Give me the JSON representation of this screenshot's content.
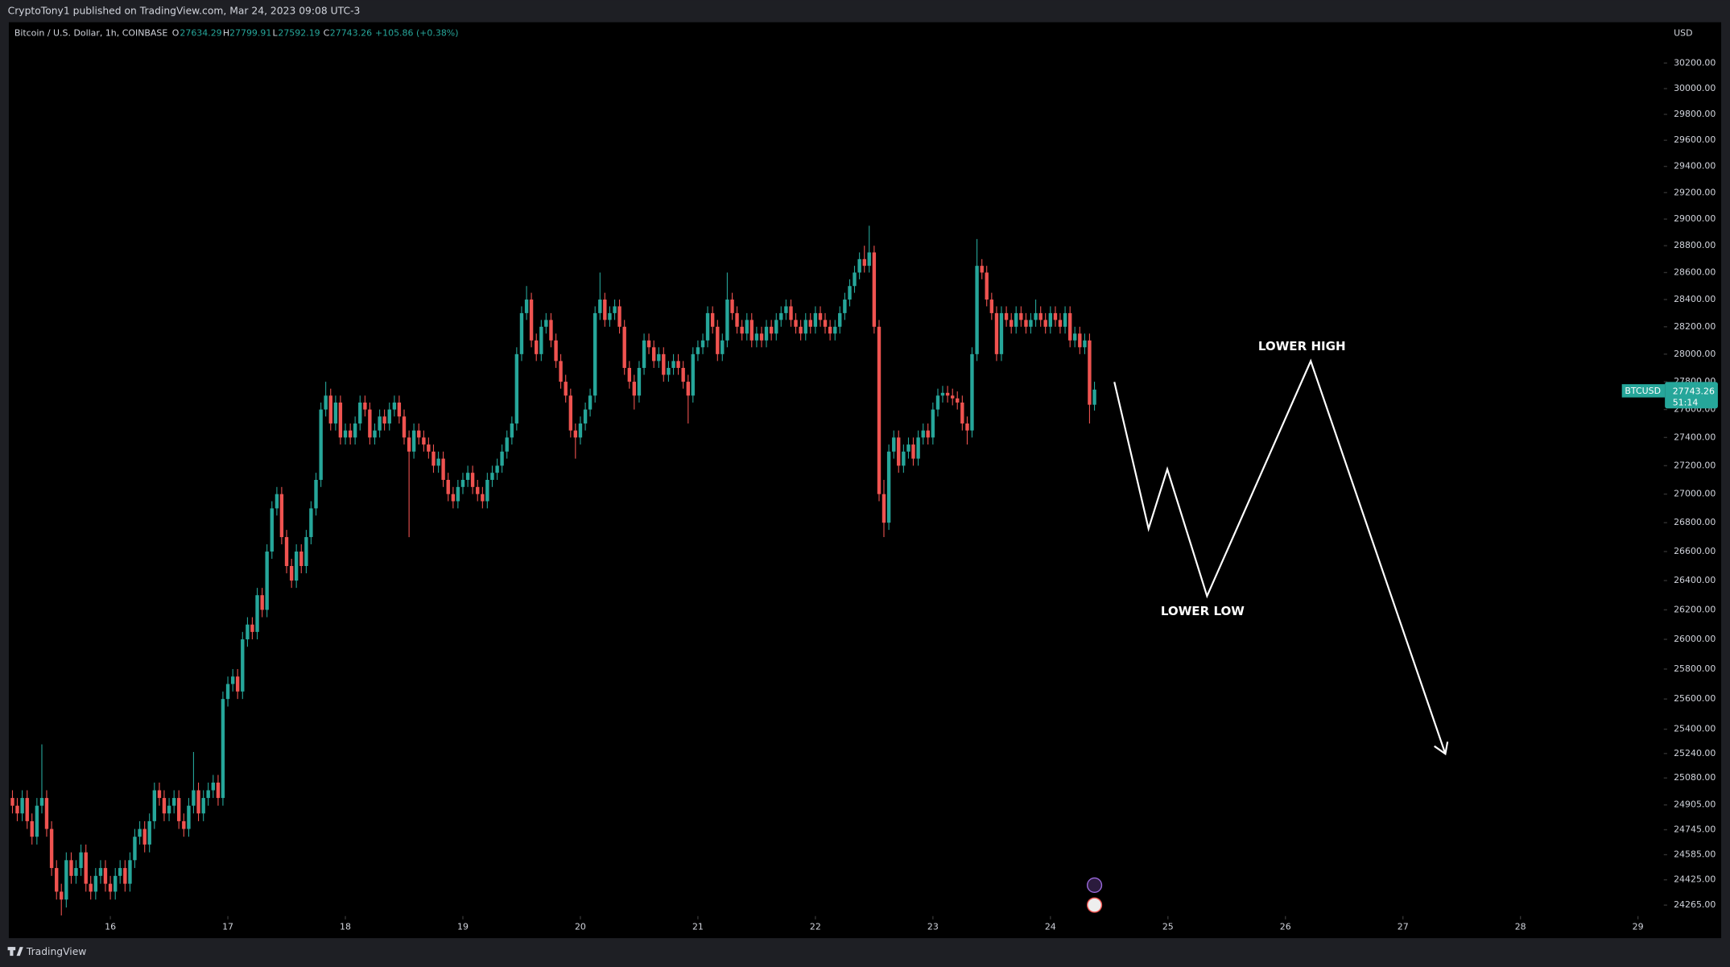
{
  "header": "CryptoTony1 published on TradingView.com, Mar 24, 2023 09:08 UTC-3",
  "footer": "TradingView",
  "chart_data": {
    "type": "candlestick",
    "legend": {
      "symbol": "Bitcoin / U.S. Dollar, 1h, COINBASE",
      "open_label": "O",
      "high_label": "H",
      "low_label": "L",
      "close_label": "C",
      "change": "+105.86 (+0.38%)"
    },
    "currency": "USD",
    "price_tag": {
      "symbol": "BTCUSD",
      "countdown": "51:14"
    },
    "annotations": [
      "LOWER HIGH",
      "LOWER LOW"
    ],
    "up_color": "#26a69a",
    "down_color": "#ef5350",
    "log_scale": true,
    "grid": false,
    "xlim": [
      15.136,
      29.22
    ],
    "xticks": [
      16,
      17,
      18,
      19,
      20,
      21,
      22,
      23,
      24,
      25,
      26,
      27,
      28,
      29
    ],
    "ylim": [
      24196,
      30522
    ],
    "yticks": [
      {
        "value": 30200,
        "label": "30200.00"
      },
      {
        "value": 30000,
        "label": "30000.00"
      },
      {
        "value": 29800,
        "label": "29800.00"
      },
      {
        "value": 29600,
        "label": "29600.00"
      },
      {
        "value": 29400,
        "label": "29400.00"
      },
      {
        "value": 29200,
        "label": "29200.00"
      },
      {
        "value": 29000,
        "label": "29000.00"
      },
      {
        "value": 28800,
        "label": "28800.00"
      },
      {
        "value": 28600,
        "label": "28600.00"
      },
      {
        "value": 28400,
        "label": "28400.00"
      },
      {
        "value": 28200,
        "label": "28200.00"
      },
      {
        "value": 28000,
        "label": "28000.00"
      },
      {
        "value": 27800,
        "label": "27800.00"
      },
      {
        "value": 27600,
        "label": "27600.00"
      },
      {
        "value": 27400,
        "label": "27400.00"
      },
      {
        "value": 27200,
        "label": "27200.00"
      },
      {
        "value": 27000,
        "label": "27000.00"
      },
      {
        "value": 26800,
        "label": "26800.00"
      },
      {
        "value": 26600,
        "label": "26600.00"
      },
      {
        "value": 26400,
        "label": "26400.00"
      },
      {
        "value": 26200,
        "label": "26200.00"
      },
      {
        "value": 26000,
        "label": "26000.00"
      },
      {
        "value": 25800,
        "label": "25800.00"
      },
      {
        "value": 25600,
        "label": "25600.00"
      },
      {
        "value": 25400,
        "label": "25400.00"
      },
      {
        "value": 25240,
        "label": "25240.00"
      },
      {
        "value": 25080,
        "label": "25080.00"
      },
      {
        "value": 24905,
        "label": "24905.00"
      },
      {
        "value": 24745,
        "label": "24745.00"
      },
      {
        "value": 24585,
        "label": "24585.00"
      },
      {
        "value": 24425,
        "label": "24425.00"
      },
      {
        "value": 24265,
        "label": "24265.00"
      }
    ],
    "x": [
      15.167,
      15.208,
      15.25,
      15.292,
      15.333,
      15.375,
      15.417,
      15.458,
      15.5,
      15.542,
      15.583,
      15.625,
      15.667,
      15.708,
      15.75,
      15.792,
      15.833,
      15.875,
      15.917,
      15.958,
      16,
      16.042,
      16.083,
      16.125,
      16.167,
      16.208,
      16.25,
      16.292,
      16.333,
      16.375,
      16.417,
      16.458,
      16.5,
      16.542,
      16.583,
      16.625,
      16.667,
      16.708,
      16.75,
      16.792,
      16.833,
      16.875,
      16.917,
      16.958,
      17,
      17.042,
      17.083,
      17.125,
      17.167,
      17.208,
      17.25,
      17.292,
      17.333,
      17.375,
      17.417,
      17.458,
      17.5,
      17.542,
      17.583,
      17.625,
      17.667,
      17.708,
      17.75,
      17.792,
      17.833,
      17.875,
      17.917,
      17.958,
      18,
      18.042,
      18.083,
      18.125,
      18.167,
      18.208,
      18.25,
      18.292,
      18.333,
      18.375,
      18.417,
      18.458,
      18.5,
      18.542,
      18.583,
      18.625,
      18.667,
      18.708,
      18.75,
      18.792,
      18.833,
      18.875,
      18.917,
      18.958,
      19,
      19.042,
      19.083,
      19.125,
      19.167,
      19.208,
      19.25,
      19.292,
      19.333,
      19.375,
      19.417,
      19.458,
      19.5,
      19.542,
      19.583,
      19.625,
      19.667,
      19.708,
      19.75,
      19.792,
      19.833,
      19.875,
      19.917,
      19.958,
      20,
      20.042,
      20.083,
      20.125,
      20.167,
      20.208,
      20.25,
      20.292,
      20.333,
      20.375,
      20.417,
      20.458,
      20.5,
      20.542,
      20.583,
      20.625,
      20.667,
      20.708,
      20.75,
      20.792,
      20.833,
      20.875,
      20.917,
      20.958,
      21,
      21.042,
      21.083,
      21.125,
      21.167,
      21.208,
      21.25,
      21.292,
      21.333,
      21.375,
      21.417,
      21.458,
      21.5,
      21.542,
      21.583,
      21.625,
      21.667,
      21.708,
      21.75,
      21.792,
      21.833,
      21.875,
      21.917,
      21.958,
      22,
      22.042,
      22.083,
      22.125,
      22.167,
      22.208,
      22.25,
      22.292,
      22.333,
      22.375,
      22.417,
      22.458,
      22.5,
      22.542,
      22.583,
      22.625,
      22.667,
      22.708,
      22.75,
      22.792,
      22.833,
      22.875,
      22.917,
      22.958,
      23,
      23.042,
      23.083,
      23.125,
      23.167,
      23.208,
      23.25,
      23.292,
      23.333,
      23.375,
      23.417,
      23.458,
      23.5,
      23.542,
      23.583,
      23.625,
      23.667,
      23.708,
      23.75,
      23.792,
      23.833,
      23.875,
      23.917,
      23.958,
      24,
      24.042,
      24.083,
      24.125,
      24.167,
      24.208,
      24.25,
      24.292,
      24.333,
      24.375
    ],
    "open": [
      24950,
      24900,
      24850,
      24950,
      24800,
      24700,
      24900,
      24950,
      24750,
      24500,
      24350,
      24300,
      24550,
      24450,
      24500,
      24600,
      24400,
      24350,
      24450,
      24500,
      24400,
      24350,
      24450,
      24500,
      24400,
      24550,
      24700,
      24750,
      24650,
      24800,
      25000,
      24950,
      24850,
      24900,
      24950,
      24800,
      24750,
      24900,
      25000,
      24850,
      24950,
      25000,
      25050,
      24950,
      25600,
      25700,
      25750,
      25650,
      26000,
      26100,
      26050,
      26300,
      26200,
      26600,
      26900,
      27000,
      26700,
      26500,
      26400,
      26600,
      26500,
      26700,
      26900,
      27100,
      27600,
      27700,
      27500,
      27650,
      27400,
      27450,
      27400,
      27500,
      27650,
      27600,
      27400,
      27450,
      27550,
      27500,
      27600,
      27650,
      27550,
      27400,
      27300,
      27450,
      27400,
      27350,
      27300,
      27200,
      27250,
      27100,
      27000,
      26950,
      27050,
      27100,
      27150,
      27050,
      27000,
      26950,
      27100,
      27150,
      27200,
      27300,
      27400,
      27500,
      28000,
      28300,
      28400,
      28100,
      28000,
      28200,
      28250,
      28100,
      27950,
      27800,
      27700,
      27450,
      27400,
      27500,
      27600,
      27700,
      28300,
      28400,
      28250,
      28300,
      28350,
      28200,
      27900,
      27800,
      27700,
      27900,
      28100,
      28050,
      27950,
      28000,
      27850,
      27900,
      27950,
      27900,
      27800,
      27700,
      28000,
      28050,
      28100,
      28300,
      28200,
      28000,
      28100,
      28400,
      28300,
      28200,
      28150,
      28250,
      28100,
      28150,
      28100,
      28200,
      28150,
      28250,
      28300,
      28350,
      28250,
      28200,
      28150,
      28250,
      28200,
      28300,
      28250,
      28200,
      28150,
      28200,
      28300,
      28400,
      28500,
      28600,
      28700,
      28650,
      28750,
      28200,
      27000,
      26800,
      27300,
      27400,
      27200,
      27300,
      27350,
      27250,
      27400,
      27450,
      27400,
      27600,
      27700,
      27720,
      27700,
      27680,
      27650,
      27500,
      27450,
      28000,
      28650,
      28600,
      28400,
      28300,
      28000,
      28300,
      28250,
      28200,
      28300,
      28250,
      28200,
      28250,
      28300,
      28250,
      28200,
      28300,
      28250,
      28200,
      28300,
      28100,
      28150,
      28050,
      28100,
      27634.29
    ],
    "high": [
      25000,
      24950,
      25000,
      25000,
      24850,
      24950,
      25300,
      25000,
      24800,
      24550,
      24400,
      24600,
      24600,
      24550,
      24650,
      24650,
      24450,
      24500,
      24550,
      24550,
      24450,
      24500,
      24550,
      24550,
      24600,
      24750,
      24800,
      24800,
      24850,
      25050,
      25050,
      25000,
      24950,
      25000,
      25000,
      24850,
      24950,
      25250,
      25050,
      25000,
      25050,
      25100,
      25100,
      25650,
      25750,
      25800,
      25800,
      26050,
      26150,
      26150,
      26350,
      26350,
      26650,
      26950,
      27050,
      27050,
      26750,
      26550,
      26650,
      26650,
      26750,
      26950,
      27150,
      27650,
      27800,
      27750,
      27700,
      27700,
      27500,
      27500,
      27550,
      27700,
      27700,
      27650,
      27500,
      27600,
      27600,
      27650,
      27700,
      27700,
      27600,
      27450,
      27500,
      27500,
      27450,
      27400,
      27350,
      27300,
      27300,
      27150,
      27050,
      27100,
      27150,
      27200,
      27200,
      27100,
      27050,
      27150,
      27200,
      27250,
      27350,
      27450,
      27550,
      28050,
      28350,
      28500,
      28450,
      28150,
      28250,
      28300,
      28300,
      28150,
      28000,
      27850,
      27750,
      27500,
      27550,
      27650,
      27750,
      28350,
      28600,
      28450,
      28350,
      28400,
      28400,
      28250,
      27950,
      27850,
      27950,
      28150,
      28150,
      28100,
      28050,
      28050,
      27950,
      28000,
      28000,
      27950,
      27850,
      28050,
      28100,
      28150,
      28350,
      28350,
      28250,
      28150,
      28600,
      28450,
      28350,
      28250,
      28300,
      28300,
      28200,
      28200,
      28250,
      28250,
      28300,
      28350,
      28400,
      28400,
      28300,
      28250,
      28300,
      28300,
      28350,
      28350,
      28300,
      28250,
      28250,
      28350,
      28450,
      28550,
      28650,
      28750,
      28800,
      28950,
      28800,
      28250,
      27100,
      27350,
      27450,
      27450,
      27350,
      27400,
      27400,
      27450,
      27500,
      27500,
      27650,
      27750,
      27770,
      27770,
      27750,
      27730,
      27700,
      27550,
      28050,
      28850,
      28700,
      28650,
      28450,
      28350,
      28350,
      28350,
      28300,
      28350,
      28350,
      28300,
      28300,
      28400,
      28350,
      28300,
      28350,
      28350,
      28300,
      28350,
      28350,
      28200,
      28200,
      28150,
      28150,
      27799.91
    ],
    "low": [
      24850,
      24800,
      24800,
      24750,
      24650,
      24650,
      24850,
      24700,
      24450,
      24300,
      24200,
      24250,
      24400,
      24400,
      24450,
      24350,
      24300,
      24300,
      24400,
      24350,
      24300,
      24300,
      24400,
      24350,
      24350,
      24500,
      24650,
      24600,
      24600,
      24750,
      24900,
      24800,
      24800,
      24850,
      24750,
      24700,
      24700,
      24850,
      24800,
      24800,
      24900,
      24950,
      24900,
      24900,
      25550,
      25650,
      25600,
      25600,
      25950,
      26000,
      26000,
      26150,
      26150,
      26550,
      26850,
      26650,
      26450,
      26350,
      26350,
      26450,
      26450,
      26650,
      26850,
      27050,
      27550,
      27450,
      27450,
      27350,
      27350,
      27350,
      27350,
      27450,
      27550,
      27350,
      27350,
      27400,
      27450,
      27450,
      27550,
      27500,
      27350,
      26700,
      27250,
      27350,
      27300,
      27250,
      27150,
      27150,
      27050,
      26950,
      26900,
      26900,
      27000,
      27050,
      27000,
      26950,
      26900,
      26900,
      27050,
      27100,
      27150,
      27250,
      27350,
      27450,
      27950,
      28250,
      28050,
      27950,
      27950,
      28150,
      28050,
      27900,
      27750,
      27650,
      27400,
      27250,
      27350,
      27450,
      27550,
      27650,
      28250,
      28200,
      28200,
      28250,
      28150,
      27850,
      27750,
      27600,
      27650,
      27850,
      28000,
      27900,
      27900,
      27800,
      27800,
      27850,
      27850,
      27750,
      27500,
      27650,
      27950,
      28000,
      28050,
      28150,
      27950,
      27950,
      28050,
      28250,
      28150,
      28100,
      28100,
      28050,
      28050,
      28050,
      28050,
      28100,
      28100,
      28200,
      28250,
      28200,
      28150,
      28100,
      28100,
      28150,
      28150,
      28200,
      28150,
      28100,
      28100,
      28150,
      28250,
      28350,
      28450,
      28550,
      28600,
      28600,
      28150,
      26950,
      26700,
      26750,
      27250,
      27150,
      27150,
      27250,
      27200,
      27200,
      27350,
      27350,
      27350,
      27550,
      27650,
      27650,
      27630,
      27600,
      27450,
      27350,
      27400,
      27950,
      28550,
      28350,
      28250,
      27950,
      27950,
      28200,
      28150,
      28150,
      28200,
      28150,
      28150,
      28200,
      28200,
      28150,
      28150,
      28200,
      28150,
      28150,
      28050,
      28050,
      28000,
      28000,
      27500,
      27592.19
    ],
    "close": [
      24900,
      24850,
      24950,
      24800,
      24700,
      24900,
      24950,
      24750,
      24500,
      24350,
      24300,
      24550,
      24450,
      24500,
      24600,
      24400,
      24350,
      24450,
      24500,
      24400,
      24350,
      24450,
      24500,
      24400,
      24550,
      24700,
      24750,
      24650,
      24800,
      25000,
      24950,
      24850,
      24900,
      24950,
      24800,
      24750,
      24900,
      25000,
      24850,
      24950,
      25000,
      25050,
      24950,
      25600,
      25700,
      25750,
      25650,
      26000,
      26100,
      26050,
      26300,
      26200,
      26600,
      26900,
      27000,
      26700,
      26500,
      26400,
      26600,
      26500,
      26700,
      26900,
      27100,
      27600,
      27700,
      27500,
      27650,
      27400,
      27450,
      27400,
      27500,
      27650,
      27600,
      27400,
      27450,
      27550,
      27500,
      27600,
      27650,
      27550,
      27400,
      27300,
      27450,
      27400,
      27350,
      27300,
      27200,
      27250,
      27100,
      27000,
      26950,
      27050,
      27100,
      27150,
      27050,
      27000,
      26950,
      27100,
      27150,
      27200,
      27300,
      27400,
      27500,
      28000,
      28300,
      28400,
      28100,
      28000,
      28200,
      28250,
      28100,
      27950,
      27800,
      27700,
      27450,
      27400,
      27500,
      27600,
      27700,
      28300,
      28400,
      28250,
      28300,
      28350,
      28200,
      27900,
      27800,
      27700,
      27900,
      28100,
      28050,
      27950,
      28000,
      27850,
      27900,
      27950,
      27900,
      27800,
      27700,
      28000,
      28050,
      28100,
      28300,
      28200,
      28000,
      28100,
      28400,
      28300,
      28200,
      28150,
      28250,
      28100,
      28150,
      28100,
      28200,
      28150,
      28250,
      28300,
      28350,
      28250,
      28200,
      28150,
      28250,
      28200,
      28300,
      28250,
      28200,
      28150,
      28200,
      28300,
      28400,
      28500,
      28600,
      28700,
      28650,
      28750,
      28200,
      27000,
      26800,
      27300,
      27400,
      27200,
      27300,
      27350,
      27250,
      27400,
      27450,
      27400,
      27600,
      27700,
      27720,
      27700,
      27680,
      27650,
      27500,
      27450,
      28000,
      28650,
      28600,
      28400,
      28300,
      28000,
      28300,
      28250,
      28200,
      28300,
      28250,
      28200,
      28250,
      28300,
      28250,
      28200,
      28300,
      28250,
      28200,
      28300,
      28100,
      28150,
      28050,
      28100,
      27634.29,
      27743.26
    ]
  }
}
